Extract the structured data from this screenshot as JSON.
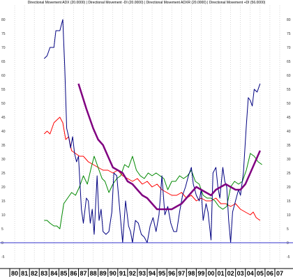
{
  "chart_data": {
    "type": "line",
    "title": "Directional Movement ADX (20.0000) | Directional Movement -DI (20.0000) | Directional Movement ADXR (20.0000) | Directional Movement +DI (56.0000)",
    "xlabel": "",
    "ylabel": "",
    "ylim": [
      -7,
      85
    ],
    "xlim": [
      1979.5,
      2007.5
    ],
    "grid": true,
    "legend": "none",
    "y_ticks": [
      -5,
      0,
      5,
      10,
      15,
      20,
      25,
      30,
      35,
      40,
      45,
      50,
      55,
      60,
      65,
      70,
      75,
      80
    ],
    "x_ticks": [
      {
        "label": "80",
        "x": 1980
      },
      {
        "label": "81",
        "x": 1981
      },
      {
        "label": "82",
        "x": 1982
      },
      {
        "label": "83",
        "x": 1983
      },
      {
        "label": "84",
        "x": 1984
      },
      {
        "label": "85",
        "x": 1985
      },
      {
        "label": "86",
        "x": 1986
      },
      {
        "label": "87",
        "x": 1987
      },
      {
        "label": "88",
        "x": 1988
      },
      {
        "label": "89",
        "x": 1989
      },
      {
        "label": "90",
        "x": 1990
      },
      {
        "label": "91",
        "x": 1991
      },
      {
        "label": "92",
        "x": 1992
      },
      {
        "label": "93",
        "x": 1993
      },
      {
        "label": "94",
        "x": 1994
      },
      {
        "label": "95",
        "x": 1995
      },
      {
        "label": "96",
        "x": 1996
      },
      {
        "label": "97",
        "x": 1997
      },
      {
        "label": "98",
        "x": 1998
      },
      {
        "label": "99",
        "x": 1999
      },
      {
        "label": "00",
        "x": 2000
      },
      {
        "label": "01",
        "x": 2001
      },
      {
        "label": "02",
        "x": 2002
      },
      {
        "label": "03",
        "x": 2003
      },
      {
        "label": "04",
        "x": 2004
      },
      {
        "label": "05",
        "x": 2005
      },
      {
        "label": "06",
        "x": 2006
      },
      {
        "label": "07",
        "x": 2007
      }
    ],
    "reference_line": {
      "y": 0,
      "color": "#3333cc"
    },
    "series": [
      {
        "color": "#ff0000",
        "width": 1,
        "points": [
          [
            1983.0,
            39
          ],
          [
            1983.3,
            40
          ],
          [
            1983.6,
            39
          ],
          [
            1984.0,
            43
          ],
          [
            1984.3,
            44
          ],
          [
            1984.6,
            45
          ],
          [
            1984.9,
            43
          ],
          [
            1985.2,
            37
          ],
          [
            1985.5,
            38
          ],
          [
            1985.8,
            33
          ],
          [
            1986.2,
            32
          ],
          [
            1986.6,
            31
          ],
          [
            1987.0,
            31
          ],
          [
            1987.5,
            29
          ],
          [
            1988.0,
            28
          ],
          [
            1988.5,
            27
          ],
          [
            1989.0,
            26
          ],
          [
            1989.5,
            26
          ],
          [
            1990.0,
            25
          ],
          [
            1990.5,
            26
          ],
          [
            1991.0,
            24
          ],
          [
            1991.5,
            23
          ],
          [
            1992.0,
            22
          ],
          [
            1992.5,
            23
          ],
          [
            1993.0,
            21
          ],
          [
            1993.5,
            22
          ],
          [
            1994.0,
            20
          ],
          [
            1994.5,
            21
          ],
          [
            1995.0,
            19
          ],
          [
            1995.5,
            18
          ],
          [
            1996.0,
            17
          ],
          [
            1996.5,
            17
          ],
          [
            1997.0,
            18
          ],
          [
            1997.5,
            16
          ],
          [
            1998.0,
            17
          ],
          [
            1998.5,
            15
          ],
          [
            1999.0,
            16
          ],
          [
            1999.5,
            15
          ],
          [
            2000.0,
            15
          ],
          [
            2000.5,
            16
          ],
          [
            2001.0,
            14
          ],
          [
            2001.5,
            14
          ],
          [
            2002.0,
            13
          ],
          [
            2002.5,
            14
          ],
          [
            2003.0,
            12
          ],
          [
            2003.5,
            11
          ],
          [
            2004.0,
            10
          ],
          [
            2004.3,
            11
          ],
          [
            2004.6,
            9
          ],
          [
            2005.0,
            8
          ]
        ]
      },
      {
        "color": "#008800",
        "width": 1,
        "points": [
          [
            1983.0,
            8
          ],
          [
            1983.3,
            8
          ],
          [
            1983.6,
            7
          ],
          [
            1984.0,
            6
          ],
          [
            1984.3,
            6
          ],
          [
            1984.6,
            5
          ],
          [
            1985.0,
            14
          ],
          [
            1985.4,
            16
          ],
          [
            1985.8,
            18
          ],
          [
            1986.2,
            17
          ],
          [
            1986.6,
            20
          ],
          [
            1987.0,
            24
          ],
          [
            1987.4,
            21
          ],
          [
            1987.8,
            27
          ],
          [
            1988.1,
            31
          ],
          [
            1988.5,
            27
          ],
          [
            1988.9,
            23
          ],
          [
            1989.2,
            22
          ],
          [
            1989.6,
            18
          ],
          [
            1990.0,
            21
          ],
          [
            1990.4,
            23
          ],
          [
            1990.8,
            24
          ],
          [
            1991.2,
            28
          ],
          [
            1991.6,
            27
          ],
          [
            1992.0,
            31
          ],
          [
            1992.4,
            26
          ],
          [
            1992.8,
            24
          ],
          [
            1993.2,
            23
          ],
          [
            1993.6,
            25
          ],
          [
            1994.0,
            24
          ],
          [
            1994.4,
            25
          ],
          [
            1994.8,
            24
          ],
          [
            1995.2,
            23
          ],
          [
            1995.6,
            19
          ],
          [
            1996.0,
            22
          ],
          [
            1996.4,
            22
          ],
          [
            1996.8,
            24
          ],
          [
            1997.2,
            23
          ],
          [
            1997.6,
            24
          ],
          [
            1998.0,
            26
          ],
          [
            1998.4,
            22
          ],
          [
            1998.8,
            21
          ],
          [
            1999.2,
            17
          ],
          [
            1999.6,
            16
          ],
          [
            2000.0,
            16
          ],
          [
            2000.4,
            15
          ],
          [
            2000.8,
            13
          ],
          [
            2001.2,
            12
          ],
          [
            2001.6,
            13
          ],
          [
            2002.0,
            20
          ],
          [
            2002.4,
            22
          ],
          [
            2002.8,
            21
          ],
          [
            2003.2,
            22
          ],
          [
            2003.6,
            26
          ],
          [
            2004.0,
            32
          ],
          [
            2004.4,
            31
          ],
          [
            2004.8,
            29
          ],
          [
            2005.2,
            28
          ]
        ]
      },
      {
        "color": "#000080",
        "width": 1,
        "points": [
          [
            1983.0,
            66
          ],
          [
            1983.3,
            67
          ],
          [
            1983.6,
            70
          ],
          [
            1984.0,
            70
          ],
          [
            1984.2,
            76
          ],
          [
            1984.6,
            76
          ],
          [
            1984.9,
            80
          ],
          [
            1985.1,
            63
          ],
          [
            1985.3,
            41
          ],
          [
            1985.5,
            38
          ],
          [
            1985.7,
            34
          ],
          [
            1985.9,
            38
          ],
          [
            1986.1,
            32
          ],
          [
            1986.3,
            29
          ],
          [
            1986.5,
            31
          ],
          [
            1986.8,
            12
          ],
          [
            1987.0,
            7
          ],
          [
            1987.3,
            16
          ],
          [
            1987.5,
            15
          ],
          [
            1987.7,
            7
          ],
          [
            1987.9,
            12
          ],
          [
            1988.1,
            3
          ],
          [
            1988.4,
            24
          ],
          [
            1988.6,
            8
          ],
          [
            1988.8,
            12
          ],
          [
            1989.0,
            4
          ],
          [
            1989.3,
            3
          ],
          [
            1989.6,
            4
          ],
          [
            1989.9,
            11
          ],
          [
            1990.1,
            25
          ],
          [
            1990.4,
            24
          ],
          [
            1990.7,
            12
          ],
          [
            1991.0,
            0
          ],
          [
            1991.3,
            15
          ],
          [
            1991.6,
            6
          ],
          [
            1991.8,
            4
          ],
          [
            1992.0,
            0
          ],
          [
            1992.3,
            8
          ],
          [
            1992.6,
            7
          ],
          [
            1992.9,
            3
          ],
          [
            1993.2,
            2
          ],
          [
            1993.5,
            0
          ],
          [
            1993.8,
            6
          ],
          [
            1994.1,
            9
          ],
          [
            1994.4,
            4
          ],
          [
            1994.7,
            10
          ],
          [
            1995.0,
            24
          ],
          [
            1995.3,
            10
          ],
          [
            1995.6,
            13
          ],
          [
            1995.9,
            7
          ],
          [
            1996.2,
            4
          ],
          [
            1996.5,
            4
          ],
          [
            1996.8,
            11
          ],
          [
            1997.1,
            17
          ],
          [
            1997.4,
            20
          ],
          [
            1997.7,
            24
          ],
          [
            1998.0,
            27
          ],
          [
            1998.2,
            21
          ],
          [
            1998.5,
            17
          ],
          [
            1998.8,
            15
          ],
          [
            1999.0,
            19
          ],
          [
            1999.2,
            8
          ],
          [
            1999.5,
            14
          ],
          [
            1999.7,
            11
          ],
          [
            2000.0,
            1
          ],
          [
            2000.2,
            25
          ],
          [
            2000.5,
            27
          ],
          [
            2000.7,
            20
          ],
          [
            2000.9,
            16
          ],
          [
            2001.2,
            27
          ],
          [
            2001.4,
            22
          ],
          [
            2001.6,
            20
          ],
          [
            2001.8,
            8
          ],
          [
            2002.0,
            0
          ],
          [
            2002.2,
            11
          ],
          [
            2002.5,
            15
          ],
          [
            2002.8,
            19
          ],
          [
            2003.0,
            17
          ],
          [
            2003.3,
            25
          ],
          [
            2003.6,
            42
          ],
          [
            2003.8,
            52
          ],
          [
            2004.0,
            51
          ],
          [
            2004.2,
            49
          ],
          [
            2004.4,
            55
          ],
          [
            2004.7,
            54
          ],
          [
            2005.0,
            57
          ]
        ]
      },
      {
        "color": "#800080",
        "width": 2.5,
        "points": [
          [
            1986.5,
            57
          ],
          [
            1987.3,
            48
          ],
          [
            1988.0,
            41
          ],
          [
            1988.5,
            37
          ],
          [
            1989.0,
            35
          ],
          [
            1989.5,
            31
          ],
          [
            1990.0,
            27
          ],
          [
            1990.5,
            26
          ],
          [
            1991.0,
            25
          ],
          [
            1991.5,
            22
          ],
          [
            1992.0,
            21
          ],
          [
            1992.5,
            19
          ],
          [
            1993.0,
            17
          ],
          [
            1993.5,
            16
          ],
          [
            1994.0,
            14
          ],
          [
            1994.5,
            12
          ],
          [
            1995.0,
            12
          ],
          [
            1995.5,
            12
          ],
          [
            1996.0,
            12
          ],
          [
            1996.5,
            13
          ],
          [
            1997.0,
            14
          ],
          [
            1997.5,
            16
          ],
          [
            1998.0,
            18
          ],
          [
            1998.5,
            20
          ],
          [
            1999.0,
            19
          ],
          [
            1999.5,
            18
          ],
          [
            2000.0,
            17
          ],
          [
            2000.5,
            19
          ],
          [
            2001.0,
            20
          ],
          [
            2001.5,
            21
          ],
          [
            2002.0,
            20
          ],
          [
            2002.5,
            19
          ],
          [
            2003.0,
            19
          ],
          [
            2003.5,
            21
          ],
          [
            2004.0,
            25
          ],
          [
            2004.5,
            29
          ],
          [
            2005.0,
            33
          ]
        ]
      }
    ]
  }
}
